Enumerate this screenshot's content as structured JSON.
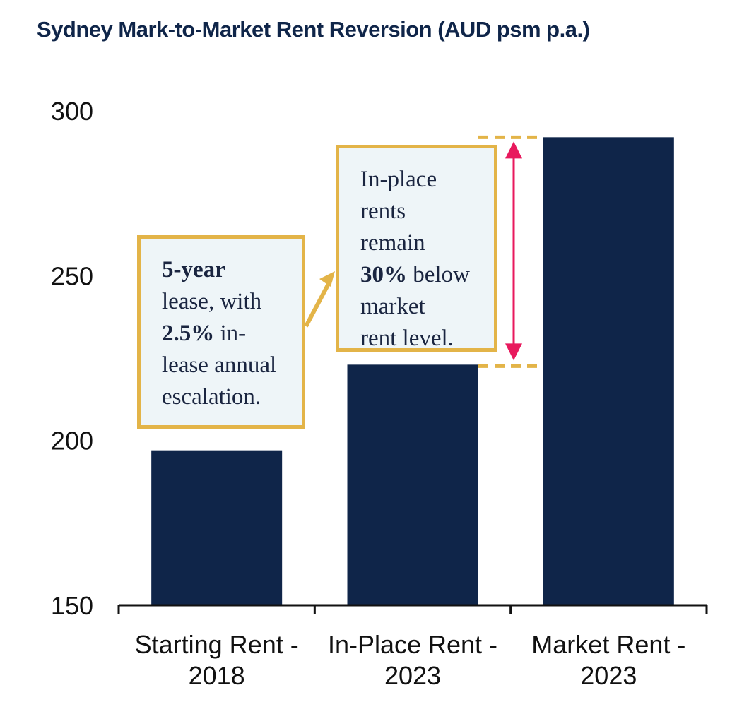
{
  "colors": {
    "title": "#0f2549",
    "bar": "#0f2549",
    "axis": "#111111",
    "callout_border": "#e3b448",
    "callout_fill": "#eef5f8",
    "arrow": "#e8195d",
    "dash": "#e3b448"
  },
  "chart_data": {
    "type": "bar",
    "title": "Sydney Mark-to-Market Rent Reversion (AUD psm p.a.)",
    "xlabel": "",
    "ylabel": "",
    "categories": [
      [
        "Starting Rent -",
        "2018"
      ],
      [
        "In-Place Rent -",
        "2023"
      ],
      [
        "Market Rent -",
        "2023"
      ]
    ],
    "values": [
      197,
      223,
      292
    ],
    "ylim": [
      150,
      300
    ],
    "yticks": [
      150,
      200,
      250,
      300
    ],
    "grid": false,
    "legend": "none"
  },
  "annotations": {
    "callout_left": {
      "bold_1": "5-year",
      "text_1": "lease, with",
      "bold_2": "2.5%",
      "text_2": "in-",
      "text_3": "lease annual",
      "text_4": "escalation."
    },
    "callout_right": {
      "text_1": "In-place",
      "text_2": "rents",
      "text_3": "remain",
      "bold_1": "30%",
      "text_4": "below",
      "text_5": "market",
      "text_6": "rent level."
    }
  }
}
